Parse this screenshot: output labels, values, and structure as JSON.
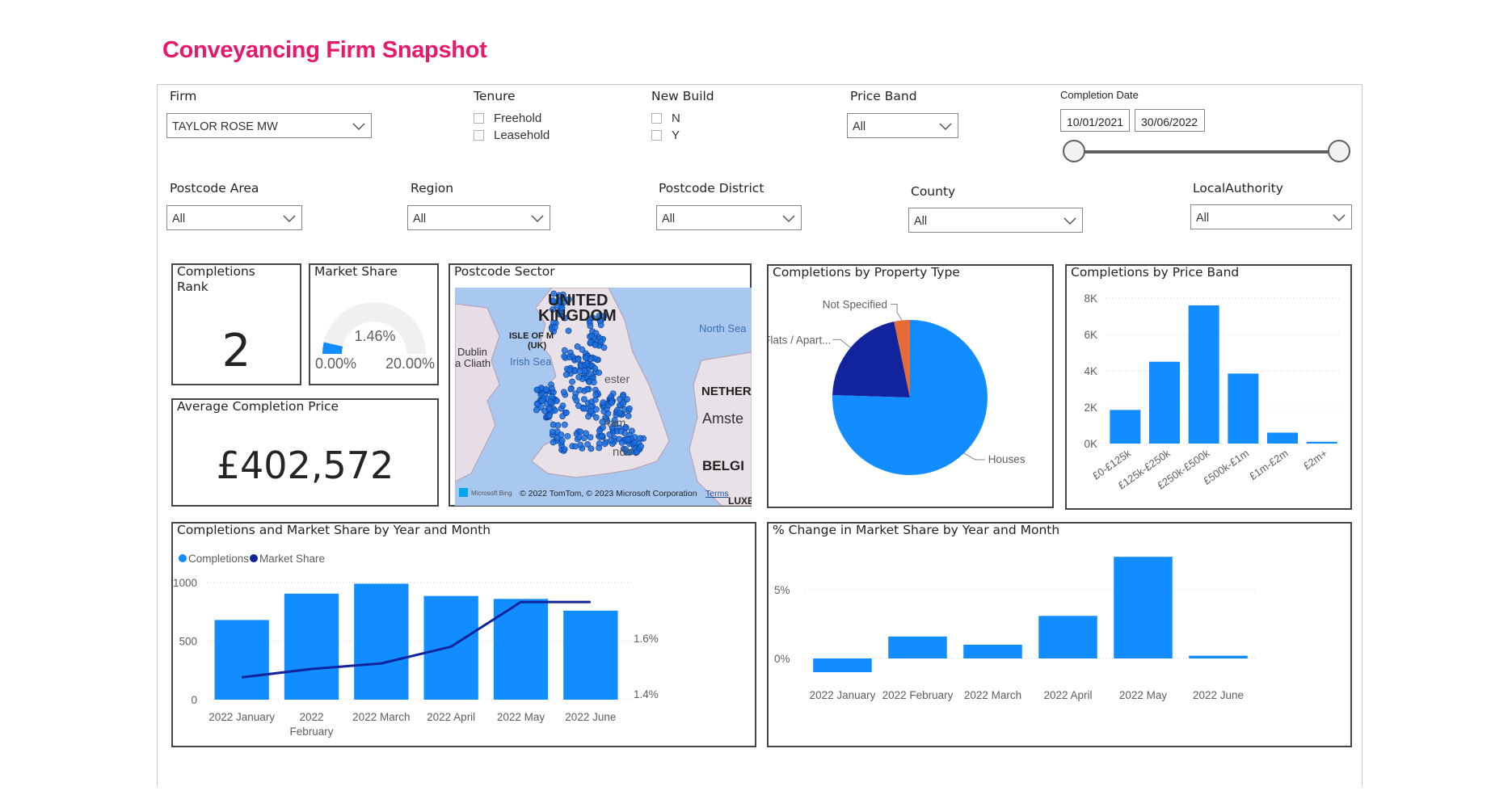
{
  "title": "Conveyancing Firm Snapshot",
  "filters": {
    "firm": {
      "label": "Firm",
      "value": "TAYLOR ROSE MW"
    },
    "tenure": {
      "label": "Tenure",
      "options": [
        "Freehold",
        "Leasehold"
      ]
    },
    "new_build": {
      "label": "New Build",
      "options": [
        "N",
        "Y"
      ]
    },
    "price_band": {
      "label": "Price Band",
      "value": "All"
    },
    "completion_date": {
      "label": "Completion Date",
      "start": "10/01/2021",
      "end": "30/06/2022"
    },
    "postcode_area": {
      "label": "Postcode Area",
      "value": "All"
    },
    "region": {
      "label": "Region",
      "value": "All"
    },
    "postcode_district": {
      "label": "Postcode District",
      "value": "All"
    },
    "county": {
      "label": "County",
      "value": "All"
    },
    "local_authority": {
      "label": "LocalAuthority",
      "value": "All"
    }
  },
  "cards": {
    "rank": {
      "title_line1": "Completions",
      "title_line2": "Rank",
      "value": "2"
    },
    "market_share": {
      "title": "Market Share",
      "value": "1.46%",
      "min": "0.00%",
      "max": "20.00%",
      "fraction": 0.073
    },
    "avg_price": {
      "title": "Average Completion Price",
      "value": "£402,572"
    }
  },
  "map": {
    "title": "Postcode Sector",
    "labels": {
      "uk": "UNITED",
      "uk2": "KINGDOM",
      "iom": "ISLE OF M",
      "iom2": "(UK)",
      "dublin": "Dublin",
      "clath": "a Cliath",
      "irish_sea": "Irish Sea",
      "north_sea": "North Sea",
      "nether": "NETHER",
      "amst": "Amste",
      "belg": "BELGI",
      "luxe": "LUXE",
      "chester": "ester",
      "london": "ndo",
      "mid": "ham"
    },
    "attribution": "© 2022 TomTom, © 2023 Microsoft Corporation",
    "terms": "Terms",
    "bing": "Microsoft Bing",
    "colors": {
      "sea": "#a9c8f0",
      "land": "#e9e1e8",
      "point": "#1a6fe0"
    }
  },
  "pie": {
    "title": "Completions by Property Type",
    "colors": {
      "houses": "#118dff",
      "flats": "#12239e",
      "ns": "#e66c37"
    },
    "chart_data": {
      "type": "pie",
      "labels": [
        "Houses",
        "Flats / Apart...",
        "Not Specified"
      ],
      "values": [
        75.5,
        21.2,
        3.3
      ]
    }
  },
  "price_band_chart": {
    "title": "Completions by Price Band",
    "chart_data": {
      "type": "bar",
      "categories": [
        "£0-£125k",
        "£125k-£250k",
        "£250k-£500k",
        "£500k-£1m",
        "£1m-£2m",
        "£2m+"
      ],
      "values": [
        1850,
        4500,
        7600,
        3850,
        600,
        100
      ],
      "ylim": [
        0,
        8000
      ],
      "yticks": [
        "0K",
        "2K",
        "4K",
        "6K",
        "8K"
      ],
      "ytick_values": [
        0,
        2000,
        4000,
        6000,
        8000
      ]
    }
  },
  "combo_chart": {
    "title": "Completions and Market Share by Year and Month",
    "legend": [
      "Completions",
      "Market Share"
    ],
    "colors": {
      "bar": "#118dff",
      "line": "#12239e"
    },
    "chart_data": {
      "type": "bar",
      "categories": [
        "2022 January",
        "2022 February",
        "2022 March",
        "2022 April",
        "2022 May",
        "2022 June"
      ],
      "series": [
        {
          "name": "Completions",
          "values": [
            680,
            905,
            990,
            885,
            860,
            760
          ]
        },
        {
          "name": "Market Share",
          "values": [
            1.46,
            1.49,
            1.51,
            1.57,
            1.73,
            1.73
          ]
        }
      ],
      "ylim": [
        0,
        1000
      ],
      "yticks": [
        "0",
        "500",
        "1000"
      ],
      "y2lim": [
        1.38,
        1.8
      ],
      "y2ticks": [
        "1.4%",
        "1.6%"
      ]
    }
  },
  "change_chart": {
    "title": "% Change in Market Share by Year and Month",
    "chart_data": {
      "type": "bar",
      "categories": [
        "2022 January",
        "2022 February",
        "2022 March",
        "2022 April",
        "2022 May",
        "2022 June"
      ],
      "values": [
        -1.0,
        1.6,
        1.0,
        3.1,
        7.4,
        0.2
      ],
      "yticks": [
        "0%",
        "5%"
      ]
    }
  }
}
